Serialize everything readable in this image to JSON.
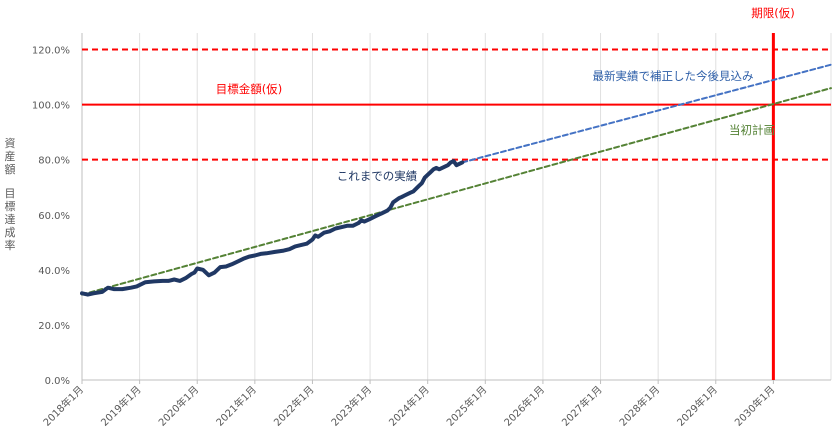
{
  "chart_data": {
    "type": "line",
    "ylabel_lines": [
      "資産額",
      "目標達成率"
    ],
    "ylim": [
      0,
      125
    ],
    "y_ticks": [
      "0.0%",
      "20.0%",
      "40.0%",
      "60.0%",
      "80.0%",
      "100.0%",
      "120.0%"
    ],
    "y_tick_values": [
      0,
      20,
      40,
      60,
      80,
      100,
      120
    ],
    "xlim": [
      2018.0,
      2031.0
    ],
    "x_ticks": [
      "2018年1月",
      "2019年1月",
      "2020年1月",
      "2021年1月",
      "2022年1月",
      "2023年1月",
      "2024年1月",
      "2025年1月",
      "2026年1月",
      "2027年1月",
      "2028年1月",
      "2029年1月",
      "2030年1月"
    ],
    "x_tick_values": [
      2018,
      2019,
      2020,
      2021,
      2022,
      2023,
      2024,
      2025,
      2026,
      2027,
      2028,
      2029,
      2030
    ],
    "grid": "vertical",
    "series": [
      {
        "name": "これまでの実績",
        "style": "solid",
        "color": "#203864",
        "points": [
          [
            2018.0,
            31.5
          ],
          [
            2018.1,
            31.0
          ],
          [
            2018.2,
            31.5
          ],
          [
            2018.35,
            32.0
          ],
          [
            2018.45,
            33.5
          ],
          [
            2018.55,
            33.0
          ],
          [
            2018.7,
            33.0
          ],
          [
            2018.85,
            33.5
          ],
          [
            2018.95,
            34.0
          ],
          [
            2019.1,
            35.5
          ],
          [
            2019.25,
            35.8
          ],
          [
            2019.4,
            36.0
          ],
          [
            2019.5,
            36.0
          ],
          [
            2019.6,
            36.5
          ],
          [
            2019.7,
            36.0
          ],
          [
            2019.8,
            37.0
          ],
          [
            2019.9,
            38.5
          ],
          [
            2019.95,
            39.0
          ],
          [
            2020.0,
            40.5
          ],
          [
            2020.1,
            40.0
          ],
          [
            2020.15,
            39.0
          ],
          [
            2020.2,
            38.0
          ],
          [
            2020.3,
            39.0
          ],
          [
            2020.4,
            41.0
          ],
          [
            2020.5,
            41.2
          ],
          [
            2020.6,
            42.0
          ],
          [
            2020.7,
            43.0
          ],
          [
            2020.8,
            44.0
          ],
          [
            2020.9,
            44.8
          ],
          [
            2021.0,
            45.2
          ],
          [
            2021.1,
            45.8
          ],
          [
            2021.2,
            46.0
          ],
          [
            2021.35,
            46.5
          ],
          [
            2021.5,
            47.0
          ],
          [
            2021.6,
            47.5
          ],
          [
            2021.7,
            48.5
          ],
          [
            2021.8,
            49.0
          ],
          [
            2021.9,
            49.5
          ],
          [
            2022.0,
            51.0
          ],
          [
            2022.05,
            52.5
          ],
          [
            2022.1,
            52.0
          ],
          [
            2022.2,
            53.5
          ],
          [
            2022.3,
            54.0
          ],
          [
            2022.4,
            55.0
          ],
          [
            2022.5,
            55.5
          ],
          [
            2022.6,
            56.0
          ],
          [
            2022.7,
            56.0
          ],
          [
            2022.8,
            57.0
          ],
          [
            2022.85,
            58.0
          ],
          [
            2022.9,
            57.5
          ],
          [
            2023.0,
            58.5
          ],
          [
            2023.1,
            59.5
          ],
          [
            2023.2,
            60.5
          ],
          [
            2023.3,
            61.5
          ],
          [
            2023.35,
            62.5
          ],
          [
            2023.4,
            64.5
          ],
          [
            2023.5,
            66.0
          ],
          [
            2023.55,
            66.5
          ],
          [
            2023.6,
            67.0
          ],
          [
            2023.7,
            68.0
          ],
          [
            2023.75,
            68.5
          ],
          [
            2023.85,
            70.5
          ],
          [
            2023.9,
            71.5
          ],
          [
            2023.95,
            73.5
          ],
          [
            2024.0,
            74.5
          ],
          [
            2024.05,
            75.5
          ],
          [
            2024.1,
            76.5
          ],
          [
            2024.15,
            77.0
          ],
          [
            2024.2,
            76.5
          ],
          [
            2024.25,
            77.0
          ],
          [
            2024.35,
            78.0
          ],
          [
            2024.4,
            79.0
          ],
          [
            2024.45,
            79.5
          ],
          [
            2024.5,
            78.0
          ],
          [
            2024.55,
            78.5
          ],
          [
            2024.6,
            79.0
          ]
        ]
      },
      {
        "name": "最新実績で補正した今後見込み",
        "style": "dashed",
        "color": "#4472C4",
        "points": [
          [
            2024.6,
            79.0
          ],
          [
            2031.0,
            114.5
          ]
        ]
      },
      {
        "name": "当初計画",
        "style": "dashed",
        "color": "#548235",
        "points": [
          [
            2018.0,
            31.0
          ],
          [
            2031.0,
            106.0
          ]
        ]
      }
    ],
    "reference_lines": [
      {
        "type": "horizontal",
        "value": 120,
        "style": "dashed",
        "color": "#FF0000"
      },
      {
        "type": "horizontal",
        "value": 100,
        "style": "solid",
        "color": "#FF0000",
        "label": "目標金額(仮)"
      },
      {
        "type": "horizontal",
        "value": 80,
        "style": "dashed",
        "color": "#FF0000"
      },
      {
        "type": "vertical",
        "value": 2030,
        "style": "solid",
        "color": "#FF0000",
        "label": "期限(仮)"
      }
    ],
    "annotations": {
      "actual": "これまでの実績",
      "forecast": "最新実績で補正した今後見込み",
      "plan": "当初計画",
      "goal": "目標金額(仮)",
      "deadline": "期限(仮)"
    }
  }
}
